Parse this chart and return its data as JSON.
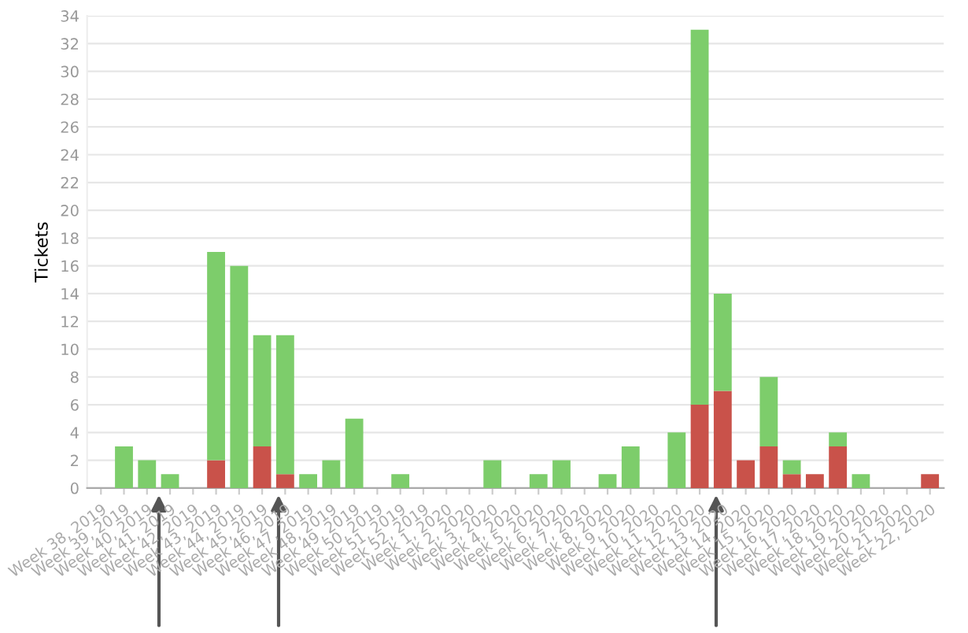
{
  "chart_data": {
    "type": "bar",
    "stacked": true,
    "ylabel": "Tickets",
    "categories": [
      "Week 38, 2019",
      "Week 39, 2019",
      "Week 40, 2019",
      "Week 41, 2019",
      "Week 42, 2019",
      "Week 43, 2019",
      "Week 44, 2019",
      "Week 45, 2019",
      "Week 46, 2019",
      "Week 47, 2019",
      "Week 48, 2019",
      "Week 49, 2019",
      "Week 50, 2019",
      "Week 51, 2019",
      "Week 52, 2019",
      "Week 1, 2020",
      "Week 2, 2020",
      "Week 3, 2020",
      "Week 4, 2020",
      "Week 5, 2020",
      "Week 6, 2020",
      "Week 7, 2020",
      "Week 8, 2020",
      "Week 9, 2020",
      "Week 10, 2020",
      "Week 11, 2020",
      "Week 12, 2020",
      "Week 13, 2020",
      "Week 14, 2020",
      "Week 15, 2020",
      "Week 16, 2020",
      "Week 17, 2020",
      "Week 18, 2020",
      "Week 19, 2020",
      "Week 20, 2020",
      "Week 21, 2020",
      "Week 22, 2020"
    ],
    "series": [
      {
        "color": "#c9524a",
        "values": [
          0,
          0,
          0,
          0,
          0,
          2,
          0,
          3,
          1,
          0,
          0,
          0,
          0,
          0,
          0,
          0,
          0,
          0,
          0,
          0,
          0,
          0,
          0,
          0,
          0,
          0,
          6,
          7,
          2,
          3,
          1,
          1,
          3,
          0,
          0,
          0,
          1
        ]
      },
      {
        "color": "#7dcd6b",
        "values": [
          0,
          3,
          2,
          1,
          0,
          15,
          16,
          8,
          10,
          1,
          2,
          5,
          0,
          1,
          0,
          0,
          0,
          2,
          0,
          1,
          2,
          0,
          1,
          3,
          0,
          4,
          27,
          7,
          0,
          5,
          1,
          0,
          1,
          1,
          0,
          0,
          0
        ]
      }
    ],
    "ylim": [
      0,
      34
    ],
    "yticks": [
      0,
      2,
      4,
      6,
      8,
      10,
      12,
      14,
      16,
      18,
      20,
      22,
      24,
      26,
      28,
      30,
      32,
      34
    ],
    "grid": "y"
  }
}
